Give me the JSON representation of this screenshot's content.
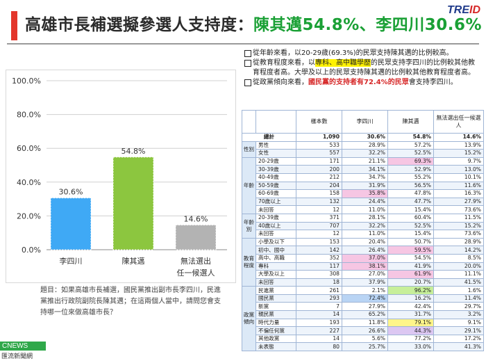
{
  "header": {
    "title_prefix": "高雄市長補選擬參選人支持度：",
    "title_highlight": "陳其邁54.8%、李四川30.6%",
    "logo_main": "TRE",
    "logo_id": "ID"
  },
  "chart_data": {
    "type": "bar",
    "categories": [
      "李四川",
      "陳其邁",
      "無法選出任一候選人"
    ],
    "values": [
      30.6,
      54.8,
      14.6
    ],
    "value_labels": [
      "30.6%",
      "54.8%",
      "14.6%"
    ],
    "colors": [
      "#3fa9f5",
      "#8cc63f",
      "#b3b3b3"
    ],
    "yticks": [
      "0.0%",
      "20.0%",
      "40.0%",
      "60.0%",
      "80.0%",
      "100.0%"
    ],
    "ylim": [
      0,
      100
    ],
    "grid": true,
    "title": "",
    "xlabel": "",
    "ylabel": ""
  },
  "chart_text": {
    "cat_1": "李四川",
    "cat_2": "陳其邁",
    "cat_3_line1": "無法選出",
    "cat_3_line2": "任一候選人"
  },
  "question": "題目：如果高雄市長補選，國民黨推出副市長李四川，民進黨推出行政院副院長陳其邁；在這兩個人當中，請問您會支持哪一位來做高雄市長？",
  "footer": {
    "brand": "CNEWS",
    "sub": "匯流新聞網"
  },
  "notes": [
    {
      "pre": "從年齡來看，以20-29歲(69.3%)的民眾支持陳其邁的比例較高。"
    },
    {
      "pre": "從教育程度來看，以",
      "hl": "專科、高中職學歷",
      "post": "的民眾支持李四川的比例較其他教育程度者高。大學及以上的民眾支持陳其邁的比例較其他教育程度者高。"
    },
    {
      "pre": "從政黨傾向來看，",
      "hl": "國民黨的支持者有72.4%的民眾",
      "post": "會支持李四川。"
    }
  ],
  "table": {
    "headers": [
      "樣本數",
      "李四川",
      "陳其邁",
      "無法選出任一候選人"
    ],
    "total": {
      "label": "總計",
      "values": [
        "1,090",
        "30.6%",
        "54.8%",
        "14.6%"
      ]
    },
    "groups": [
      {
        "name": "性別",
        "rows": [
          {
            "label": "男性",
            "values": [
              "533",
              "28.9%",
              "57.2%",
              "13.9%"
            ]
          },
          {
            "label": "女性",
            "values": [
              "557",
              "32.2%",
              "52.5%",
              "15.2%"
            ]
          }
        ]
      },
      {
        "name": "年齡",
        "rows": [
          {
            "label": "20-29歲",
            "values": [
              "171",
              "21.1%",
              "69.3%",
              "9.7%"
            ],
            "hl": [
              null,
              null,
              "hl-pink",
              null
            ]
          },
          {
            "label": "30-39歲",
            "values": [
              "200",
              "34.1%",
              "52.9%",
              "13.0%"
            ]
          },
          {
            "label": "40-49歲",
            "values": [
              "212",
              "34.7%",
              "55.2%",
              "10.1%"
            ]
          },
          {
            "label": "50-59歲",
            "values": [
              "204",
              "31.9%",
              "56.5%",
              "11.6%"
            ]
          },
          {
            "label": "60-69歲",
            "values": [
              "158",
              "35.8%",
              "47.8%",
              "16.3%"
            ],
            "hl": [
              null,
              "hl-pink",
              null,
              null
            ]
          },
          {
            "label": "70歲以上",
            "values": [
              "132",
              "24.4%",
              "47.7%",
              "27.9%"
            ]
          },
          {
            "label": "未回答",
            "values": [
              "12",
              "11.0%",
              "15.4%",
              "73.6%"
            ]
          }
        ]
      },
      {
        "name": "年齡別",
        "rows": [
          {
            "label": "20-39歲",
            "values": [
              "371",
              "28.1%",
              "60.4%",
              "11.5%"
            ]
          },
          {
            "label": "40歲以上",
            "values": [
              "707",
              "32.2%",
              "52.5%",
              "15.2%"
            ]
          },
          {
            "label": "未回答",
            "values": [
              "12",
              "11.0%",
              "15.4%",
              "73.6%"
            ]
          }
        ]
      },
      {
        "name": "教育程度",
        "rows": [
          {
            "label": "小學及以下",
            "values": [
              "153",
              "20.4%",
              "50.7%",
              "28.9%"
            ]
          },
          {
            "label": "初中、國中",
            "values": [
              "142",
              "26.4%",
              "59.5%",
              "14.2%"
            ],
            "hl": [
              null,
              null,
              "hl-pink",
              null
            ]
          },
          {
            "label": "高中、高職",
            "values": [
              "352",
              "37.0%",
              "54.5%",
              "8.5%"
            ],
            "hl": [
              null,
              "hl-pink",
              null,
              null
            ]
          },
          {
            "label": "專科",
            "values": [
              "117",
              "38.1%",
              "41.9%",
              "20.0%"
            ],
            "hl": [
              null,
              "hl-pink",
              null,
              null
            ]
          },
          {
            "label": "大學及以上",
            "values": [
              "308",
              "27.0%",
              "61.9%",
              "11.1%"
            ],
            "hl": [
              null,
              null,
              "hl-pink",
              null
            ]
          },
          {
            "label": "未回答",
            "values": [
              "18",
              "37.9%",
              "20.7%",
              "41.5%"
            ]
          }
        ]
      },
      {
        "name": "政黨傾向",
        "rows": [
          {
            "label": "民進黨",
            "values": [
              "261",
              "2.1%",
              "96.2%",
              "1.6%"
            ],
            "hl": [
              null,
              null,
              "hl-green",
              null
            ]
          },
          {
            "label": "國民黨",
            "values": [
              "293",
              "72.4%",
              "16.2%",
              "11.4%"
            ],
            "hl": [
              null,
              "hl-blue",
              null,
              null
            ]
          },
          {
            "label": "新黨",
            "values": [
              "7",
              "27.9%",
              "42.4%",
              "29.7%"
            ]
          },
          {
            "label": "親民黨",
            "values": [
              "14",
              "65.2%",
              "31.7%",
              "3.2%"
            ]
          },
          {
            "label": "時代力量",
            "values": [
              "193",
              "11.8%",
              "79.1%",
              "9.1%"
            ],
            "hl": [
              null,
              null,
              "hl-yellow",
              null
            ]
          },
          {
            "label": "不偏任何黨",
            "values": [
              "227",
              "26.6%",
              "44.3%",
              "29.1%"
            ],
            "hl": [
              null,
              null,
              "hl-lav",
              null
            ]
          },
          {
            "label": "其他政黨",
            "values": [
              "14",
              "5.6%",
              "77.2%",
              "17.2%"
            ]
          },
          {
            "label": "未表態",
            "values": [
              "80",
              "25.7%",
              "33.0%",
              "41.3%"
            ]
          }
        ]
      }
    ]
  }
}
